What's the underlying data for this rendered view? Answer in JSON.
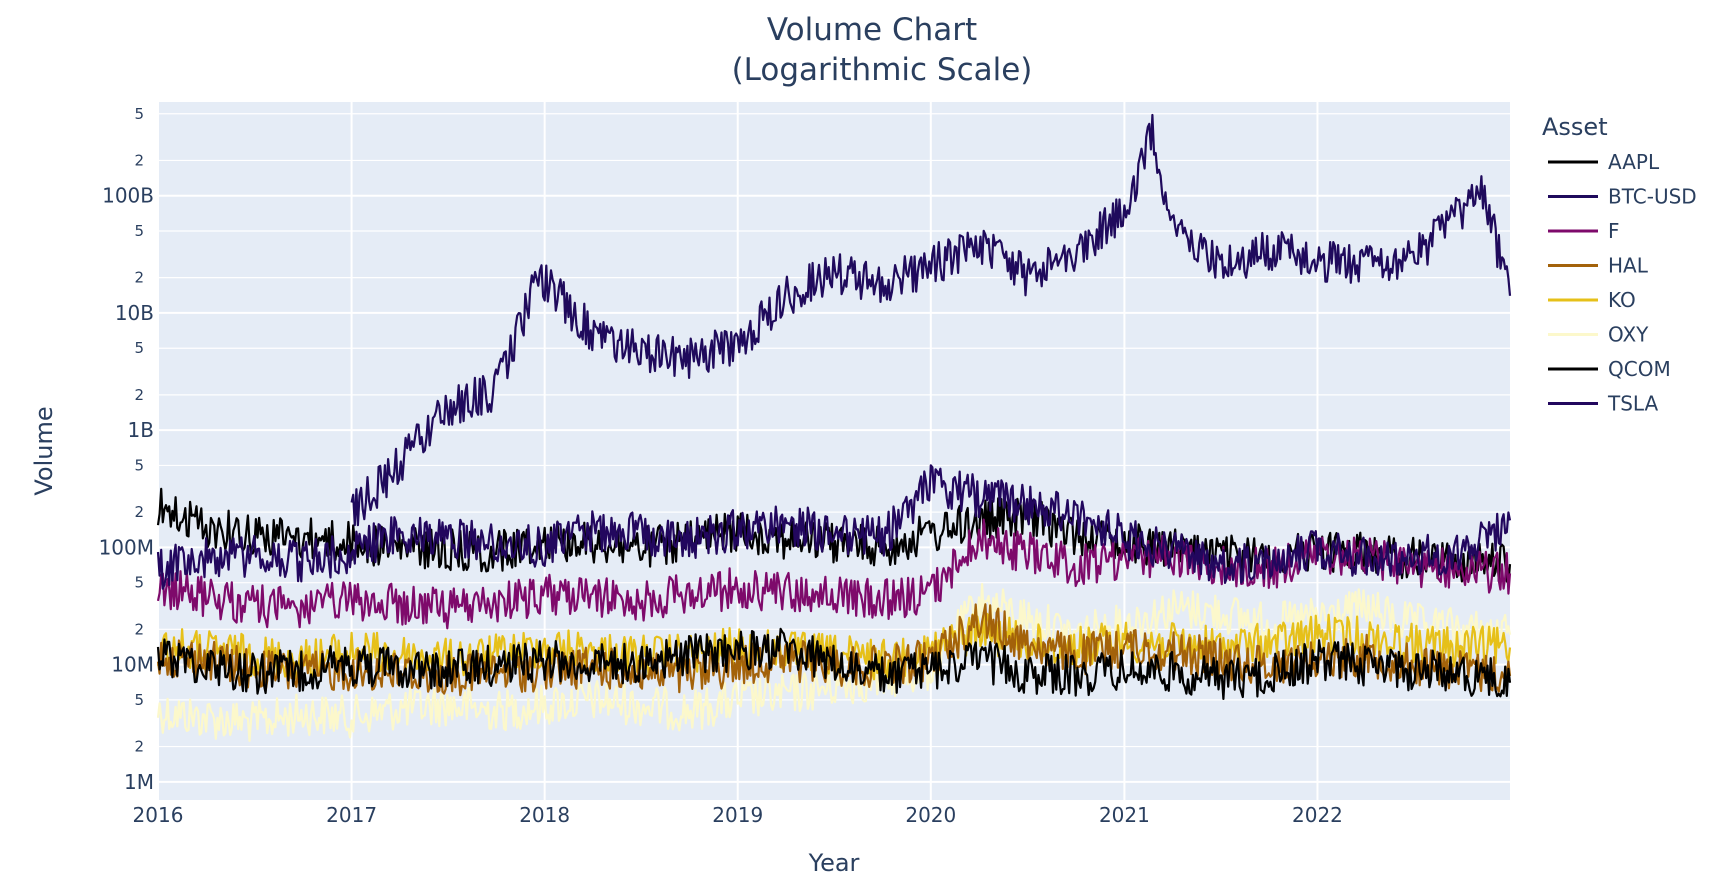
{
  "chart_data": {
    "type": "line",
    "title_line1": "Volume Chart",
    "title_line2": "(Logarithmic Scale)",
    "xlabel": "Year",
    "ylabel": "Volume",
    "y_scale": "log",
    "ylim": [
      700000,
      630000000000
    ],
    "xlim": [
      "2016-01-01",
      "2022-12-31"
    ],
    "x_ticks": [
      "2016",
      "2017",
      "2018",
      "2019",
      "2020",
      "2021",
      "2022"
    ],
    "y_major_ticks": [
      {
        "value": 1000000,
        "label": "1M"
      },
      {
        "value": 10000000,
        "label": "10M"
      },
      {
        "value": 100000000,
        "label": "100M"
      },
      {
        "value": 1000000000,
        "label": "1B"
      },
      {
        "value": 10000000000,
        "label": "10B"
      },
      {
        "value": 100000000000,
        "label": "100B"
      }
    ],
    "y_minor_ticks": [
      {
        "value": 2000000,
        "label": "2"
      },
      {
        "value": 5000000,
        "label": "5"
      },
      {
        "value": 20000000,
        "label": "2"
      },
      {
        "value": 50000000,
        "label": "5"
      },
      {
        "value": 200000000,
        "label": "2"
      },
      {
        "value": 500000000,
        "label": "5"
      },
      {
        "value": 2000000000,
        "label": "2"
      },
      {
        "value": 5000000000,
        "label": "5"
      },
      {
        "value": 20000000000,
        "label": "2"
      },
      {
        "value": 50000000000,
        "label": "5"
      },
      {
        "value": 200000000000,
        "label": "2"
      },
      {
        "value": 500000000000,
        "label": "5"
      }
    ],
    "grid": true,
    "plot_background": "#e5ecf6",
    "legend": {
      "title": "Asset",
      "position": "right"
    },
    "series": [
      {
        "name": "OXY",
        "color": "#fcf8cb",
        "dates": [
          "2016-01-01",
          "2016-04-01",
          "2016-07-01",
          "2016-10-01",
          "2017-01-01",
          "2017-04-01",
          "2017-07-01",
          "2017-10-01",
          "2018-01-01",
          "2018-04-01",
          "2018-07-01",
          "2018-10-01",
          "2019-01-01",
          "2019-04-01",
          "2019-07-01",
          "2019-10-01",
          "2020-01-01",
          "2020-04-01",
          "2020-07-01",
          "2020-10-01",
          "2021-01-01",
          "2021-04-01",
          "2021-07-01",
          "2021-10-01",
          "2022-01-01",
          "2022-04-01",
          "2022-07-01",
          "2022-10-01",
          "2022-12-31"
        ],
        "values": [
          4000000,
          3500000,
          3200000,
          3800000,
          3600000,
          4200000,
          4500000,
          4000000,
          4500000,
          5000000,
          4500000,
          4000000,
          5000000,
          5500000,
          6500000,
          7500000,
          9000000,
          35000000,
          25000000,
          18000000,
          22000000,
          30000000,
          28000000,
          22000000,
          25000000,
          30000000,
          22000000,
          20000000,
          18000000
        ]
      },
      {
        "name": "KO",
        "color": "#e6c019",
        "dates": [
          "2016-01-01",
          "2016-04-01",
          "2016-07-01",
          "2016-10-01",
          "2017-01-01",
          "2017-04-01",
          "2017-07-01",
          "2017-10-01",
          "2018-01-01",
          "2018-04-01",
          "2018-07-01",
          "2018-10-01",
          "2019-01-01",
          "2019-04-01",
          "2019-07-01",
          "2019-10-01",
          "2020-01-01",
          "2020-04-01",
          "2020-07-01",
          "2020-10-01",
          "2021-01-01",
          "2021-04-01",
          "2021-07-01",
          "2021-10-01",
          "2022-01-01",
          "2022-04-01",
          "2022-07-01",
          "2022-10-01",
          "2022-12-31"
        ],
        "values": [
          14000000,
          13000000,
          12000000,
          11000000,
          13000000,
          12000000,
          11000000,
          12000000,
          14000000,
          13000000,
          12000000,
          12000000,
          14000000,
          13000000,
          12000000,
          11000000,
          13000000,
          20000000,
          15000000,
          14000000,
          16000000,
          15000000,
          14000000,
          15000000,
          18000000,
          17000000,
          15000000,
          14000000,
          14000000
        ]
      },
      {
        "name": "HAL",
        "color": "#a3620a",
        "dates": [
          "2016-01-01",
          "2016-04-01",
          "2016-07-01",
          "2016-10-01",
          "2017-01-01",
          "2017-04-01",
          "2017-07-01",
          "2017-10-01",
          "2018-01-01",
          "2018-04-01",
          "2018-07-01",
          "2018-10-01",
          "2019-01-01",
          "2019-04-01",
          "2019-07-01",
          "2019-10-01",
          "2020-01-01",
          "2020-04-01",
          "2020-07-01",
          "2020-10-01",
          "2021-01-01",
          "2021-04-01",
          "2021-07-01",
          "2021-10-01",
          "2022-01-01",
          "2022-04-01",
          "2022-07-01",
          "2022-10-01",
          "2022-12-31"
        ],
        "values": [
          12000000,
          11000000,
          9000000,
          8500000,
          9000000,
          8500000,
          8000000,
          8500000,
          9000000,
          9500000,
          8500000,
          8000000,
          10000000,
          11000000,
          10000000,
          9500000,
          11000000,
          25000000,
          15000000,
          12000000,
          14000000,
          13000000,
          11000000,
          10000000,
          11000000,
          12000000,
          10000000,
          9000000,
          8000000
        ]
      },
      {
        "name": "AAPL",
        "color": "#000000",
        "dates": [
          "2016-01-01",
          "2016-04-01",
          "2016-07-01",
          "2016-10-01",
          "2017-01-01",
          "2017-04-01",
          "2017-07-01",
          "2017-10-01",
          "2018-01-01",
          "2018-04-01",
          "2018-07-01",
          "2018-10-01",
          "2019-01-01",
          "2019-04-01",
          "2019-07-01",
          "2019-10-01",
          "2020-01-01",
          "2020-04-01",
          "2020-07-01",
          "2020-10-01",
          "2021-01-01",
          "2021-04-01",
          "2021-07-01",
          "2021-10-01",
          "2022-01-01",
          "2022-04-01",
          "2022-07-01",
          "2022-10-01",
          "2022-12-31"
        ],
        "values": [
          220000000,
          150000000,
          130000000,
          120000000,
          110000000,
          100000000,
          95000000,
          90000000,
          120000000,
          110000000,
          100000000,
          110000000,
          140000000,
          120000000,
          110000000,
          100000000,
          130000000,
          170000000,
          180000000,
          130000000,
          110000000,
          100000000,
          85000000,
          80000000,
          95000000,
          90000000,
          80000000,
          75000000,
          72000000
        ]
      },
      {
        "name": "QCOM",
        "color": "#000000",
        "dates": [
          "2016-01-01",
          "2016-04-01",
          "2016-07-01",
          "2016-10-01",
          "2017-01-01",
          "2017-04-01",
          "2017-07-01",
          "2017-10-01",
          "2018-01-01",
          "2018-04-01",
          "2018-07-01",
          "2018-10-01",
          "2019-01-01",
          "2019-04-01",
          "2019-07-01",
          "2019-10-01",
          "2020-01-01",
          "2020-04-01",
          "2020-07-01",
          "2020-10-01",
          "2021-01-01",
          "2021-04-01",
          "2021-07-01",
          "2021-10-01",
          "2022-01-01",
          "2022-04-01",
          "2022-07-01",
          "2022-10-01",
          "2022-12-31"
        ],
        "values": [
          12000000,
          10000000,
          8500000,
          9000000,
          10000000,
          9500000,
          9000000,
          10000000,
          11000000,
          10000000,
          10500000,
          12000000,
          13000000,
          14000000,
          10000000,
          8000000,
          9000000,
          11000000,
          8500000,
          8000000,
          9000000,
          8500000,
          7500000,
          8000000,
          11000000,
          10000000,
          9000000,
          8500000,
          7000000
        ]
      },
      {
        "name": "F",
        "color": "#7e0a6b",
        "dates": [
          "2016-01-01",
          "2016-04-01",
          "2016-07-01",
          "2016-10-01",
          "2017-01-01",
          "2017-04-01",
          "2017-07-01",
          "2017-10-01",
          "2018-01-01",
          "2018-04-01",
          "2018-07-01",
          "2018-10-01",
          "2019-01-01",
          "2019-04-01",
          "2019-07-01",
          "2019-10-01",
          "2020-01-01",
          "2020-04-01",
          "2020-07-01",
          "2020-10-01",
          "2021-01-01",
          "2021-04-01",
          "2021-07-01",
          "2021-10-01",
          "2022-01-01",
          "2022-04-01",
          "2022-07-01",
          "2022-10-01",
          "2022-12-31"
        ],
        "values": [
          45000000,
          38000000,
          32000000,
          30000000,
          35000000,
          32000000,
          30000000,
          33000000,
          40000000,
          38000000,
          35000000,
          40000000,
          45000000,
          42000000,
          38000000,
          35000000,
          40000000,
          120000000,
          90000000,
          70000000,
          80000000,
          85000000,
          70000000,
          65000000,
          90000000,
          80000000,
          70000000,
          65000000,
          60000000
        ]
      },
      {
        "name": "TSLA",
        "color": "#22075e",
        "dates": [
          "2016-01-01",
          "2016-04-01",
          "2016-07-01",
          "2016-10-01",
          "2017-01-01",
          "2017-04-01",
          "2017-07-01",
          "2017-10-01",
          "2018-01-01",
          "2018-04-01",
          "2018-07-01",
          "2018-10-01",
          "2019-01-01",
          "2019-04-01",
          "2019-07-01",
          "2019-10-01",
          "2020-01-01",
          "2020-04-01",
          "2020-07-01",
          "2020-10-01",
          "2021-01-01",
          "2021-04-01",
          "2021-07-01",
          "2021-10-01",
          "2022-01-01",
          "2022-04-01",
          "2022-07-01",
          "2022-10-01",
          "2022-12-31"
        ],
        "values": [
          65000000,
          80000000,
          85000000,
          75000000,
          90000000,
          130000000,
          120000000,
          110000000,
          100000000,
          140000000,
          130000000,
          120000000,
          140000000,
          160000000,
          130000000,
          120000000,
          350000000,
          270000000,
          230000000,
          200000000,
          120000000,
          90000000,
          70000000,
          80000000,
          100000000,
          80000000,
          85000000,
          90000000,
          170000000
        ]
      },
      {
        "name": "BTC-USD",
        "color": "#1f0a5c",
        "dates": [
          "2017-01-01",
          "2017-04-01",
          "2017-07-01",
          "2017-10-01",
          "2017-12-20",
          "2018-04-01",
          "2018-07-01",
          "2018-10-01",
          "2019-01-01",
          "2019-04-01",
          "2019-07-01",
          "2019-10-01",
          "2020-01-01",
          "2020-04-01",
          "2020-07-01",
          "2020-10-01",
          "2021-01-01",
          "2021-02-23",
          "2021-04-01",
          "2021-07-01",
          "2021-10-01",
          "2022-01-01",
          "2022-04-01",
          "2022-07-01",
          "2022-11-10",
          "2022-12-31"
        ],
        "values": [
          200000000,
          500000000,
          1500000000,
          2200000000,
          20000000000,
          7000000000,
          4500000000,
          4000000000,
          5500000000,
          14000000000,
          22000000000,
          18000000000,
          25000000000,
          40000000000,
          20000000000,
          35000000000,
          70000000000,
          350000000000,
          60000000000,
          25000000000,
          35000000000,
          28000000000,
          26000000000,
          28000000000,
          110000000000,
          14000000000
        ]
      }
    ],
    "legend_order": [
      "AAPL",
      "BTC-USD",
      "F",
      "HAL",
      "KO",
      "OXY",
      "QCOM",
      "TSLA"
    ]
  }
}
